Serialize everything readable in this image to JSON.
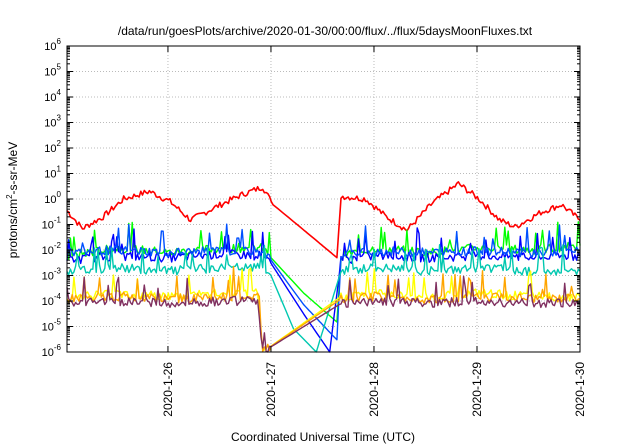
{
  "chart_data": {
    "type": "line",
    "title": "/data/run/goesPlots/archive/2020-01-30/00:00/flux/../flux/5daysMoonFluxes.txt",
    "xlabel": "Coordinated Universal Time (UTC)",
    "ylabel": "protons/cm2-s-sr-MeV",
    "ylabel_parts": {
      "pre": "protons/cm",
      "sup": "2",
      "post": "-s-sr-MeV"
    },
    "x_ticks": [
      "2020-1-26",
      "2020-1-27",
      "2020-1-28",
      "2020-1-29",
      "2020-1-30"
    ],
    "xlim_days": [
      0,
      4.98
    ],
    "y_scale": "log",
    "y_ticks_exp": [
      -6,
      -5,
      -4,
      -3,
      -2,
      -1,
      0,
      1,
      2,
      3,
      4,
      5,
      6
    ],
    "ylim": [
      1e-06,
      1000000.0
    ],
    "grid": true,
    "legend": "none",
    "gap": [
      1.92,
      2.6
    ],
    "series": [
      {
        "color": "#ff0000",
        "values": [
          [
            0,
            0.35
          ],
          [
            0.15,
            0.07
          ],
          [
            0.35,
            0.2
          ],
          [
            0.55,
            1.0
          ],
          [
            0.8,
            2.0
          ],
          [
            1.0,
            0.8
          ],
          [
            1.2,
            0.15
          ],
          [
            1.45,
            0.5
          ],
          [
            1.7,
            1.5
          ],
          [
            1.9,
            3.0
          ],
          [
            2.0,
            0.6
          ],
          [
            2.3,
            0.06
          ],
          [
            2.62,
            0.005
          ],
          [
            2.66,
            1.3
          ],
          [
            2.9,
            1.0
          ],
          [
            3.1,
            0.2
          ],
          [
            3.3,
            0.06
          ],
          [
            3.55,
            0.7
          ],
          [
            3.8,
            4.0
          ],
          [
            4.0,
            1.0
          ],
          [
            4.2,
            0.15
          ],
          [
            4.35,
            0.08
          ],
          [
            4.6,
            0.3
          ],
          [
            4.8,
            0.6
          ],
          [
            4.98,
            0.15
          ]
        ]
      },
      {
        "color": "#00ff00",
        "values": [
          [
            0,
            0.006
          ],
          [
            0.5,
            0.012
          ],
          [
            1.0,
            0.008
          ],
          [
            1.5,
            0.012
          ],
          [
            1.9,
            0.012
          ],
          [
            1.98,
            0.005
          ],
          [
            2.3,
            0.0002
          ],
          [
            2.62,
            1.5e-05
          ],
          [
            2.66,
            0.006
          ],
          [
            3.0,
            0.012
          ],
          [
            3.5,
            0.008
          ],
          [
            4.0,
            0.012
          ],
          [
            4.5,
            0.01
          ],
          [
            4.98,
            0.015
          ]
        ]
      },
      {
        "color": "#0000ff",
        "values": [
          [
            0,
            0.004
          ],
          [
            0.5,
            0.006
          ],
          [
            1.0,
            0.005
          ],
          [
            1.5,
            0.007
          ],
          [
            1.9,
            0.006
          ],
          [
            1.98,
            0.003
          ],
          [
            2.3,
            3e-05
          ],
          [
            2.55,
            1e-06
          ],
          [
            2.66,
            0.004
          ],
          [
            3.0,
            0.006
          ],
          [
            3.5,
            0.005
          ],
          [
            4.0,
            0.006
          ],
          [
            4.5,
            0.005
          ],
          [
            4.98,
            0.006
          ]
        ]
      },
      {
        "color": "#0050ff",
        "values": [
          [
            0,
            0.008
          ],
          [
            0.5,
            0.01
          ],
          [
            1.0,
            0.008
          ],
          [
            1.5,
            0.009
          ],
          [
            1.9,
            0.009
          ],
          [
            1.98,
            0.004
          ],
          [
            2.3,
            7e-05
          ],
          [
            2.62,
            3e-06
          ],
          [
            2.66,
            0.007
          ],
          [
            3.0,
            0.009
          ],
          [
            3.5,
            0.008
          ],
          [
            4.0,
            0.009
          ],
          [
            4.5,
            0.008
          ],
          [
            4.98,
            0.009
          ]
        ]
      },
      {
        "color": "#00c8b0",
        "values": [
          [
            0,
            0.0015
          ],
          [
            0.5,
            0.002
          ],
          [
            1.0,
            0.0015
          ],
          [
            1.5,
            0.002
          ],
          [
            1.9,
            0.002
          ],
          [
            1.98,
            0.001
          ],
          [
            2.2,
            8e-06
          ],
          [
            2.42,
            1e-06
          ],
          [
            2.66,
            0.0015
          ],
          [
            3.0,
            0.002
          ],
          [
            3.5,
            0.0015
          ],
          [
            4.0,
            0.002
          ],
          [
            4.5,
            0.0015
          ],
          [
            4.98,
            0.0015
          ]
        ]
      },
      {
        "color": "#ffff00",
        "values": [
          [
            0,
            0.00015
          ],
          [
            0.5,
            0.0002
          ],
          [
            1.0,
            0.00015
          ],
          [
            1.5,
            0.0002
          ],
          [
            1.85,
            0.0002
          ],
          [
            1.9,
            1e-06
          ],
          [
            2.66,
            0.00015
          ],
          [
            3.0,
            0.0002
          ],
          [
            3.5,
            0.00015
          ],
          [
            4.0,
            0.0002
          ],
          [
            4.5,
            0.00015
          ],
          [
            4.98,
            0.00015
          ]
        ]
      },
      {
        "color": "#ffa500",
        "values": [
          [
            0,
            0.00012
          ],
          [
            0.5,
            0.00015
          ],
          [
            1.0,
            0.00012
          ],
          [
            1.5,
            0.00015
          ],
          [
            1.85,
            0.00015
          ],
          [
            1.9,
            1e-06
          ],
          [
            2.66,
            0.00012
          ],
          [
            3.0,
            0.00015
          ],
          [
            3.5,
            0.00012
          ],
          [
            4.0,
            0.00015
          ],
          [
            4.5,
            0.00012
          ],
          [
            4.98,
            0.00012
          ]
        ]
      },
      {
        "color": "#803060",
        "values": [
          [
            0,
            8e-05
          ],
          [
            0.5,
            0.0001
          ],
          [
            1.0,
            8e-05
          ],
          [
            1.5,
            0.0001
          ],
          [
            1.85,
            0.0001
          ],
          [
            1.9,
            1e-06
          ],
          [
            2.66,
            8e-05
          ],
          [
            3.0,
            0.0001
          ],
          [
            3.5,
            8e-05
          ],
          [
            4.0,
            0.0001
          ],
          [
            4.5,
            8e-05
          ],
          [
            4.98,
            8e-05
          ]
        ]
      }
    ]
  }
}
